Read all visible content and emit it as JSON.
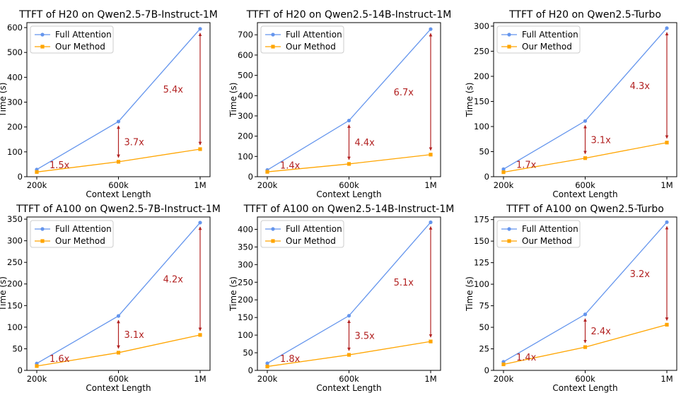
{
  "colors": {
    "full_attention": "#6495ED",
    "our_method": "#FFA500",
    "speedup_arrow": "#B22222",
    "axes": "#000000"
  },
  "chart_data": [
    {
      "type": "line",
      "title": "TTFT of H20 on Qwen2.5-7B-Instruct-1M",
      "xlabel": "Context Length",
      "ylabel": "Time (s)",
      "categories": [
        "200k",
        "600k",
        "1M"
      ],
      "ylim": [
        0,
        620
      ],
      "yticks": [
        0,
        100,
        200,
        300,
        400,
        500,
        600
      ],
      "legend": "upper-left",
      "series": [
        {
          "name": "Full Attention",
          "values": [
            29,
            222,
            595
          ]
        },
        {
          "name": "Our Method",
          "values": [
            19,
            60,
            111
          ]
        }
      ],
      "speedups": [
        {
          "category_index": 0,
          "label": "1.5x",
          "arrow": false
        },
        {
          "category_index": 1,
          "label": "3.7x",
          "arrow": true
        },
        {
          "category_index": 2,
          "label": "5.4x",
          "arrow": true
        }
      ]
    },
    {
      "type": "line",
      "title": "TTFT of H20 on Qwen2.5-14B-Instruct-1M",
      "xlabel": "Context Length",
      "ylabel": "Time (s)",
      "categories": [
        "200k",
        "600k",
        "1M"
      ],
      "ylim": [
        0,
        760
      ],
      "yticks": [
        0,
        100,
        200,
        300,
        400,
        500,
        600,
        700
      ],
      "legend": "upper-left",
      "series": [
        {
          "name": "Full Attention",
          "values": [
            33,
            277,
            728
          ]
        },
        {
          "name": "Our Method",
          "values": [
            24,
            63,
            109
          ]
        }
      ],
      "speedups": [
        {
          "category_index": 0,
          "label": "1.4x",
          "arrow": false
        },
        {
          "category_index": 1,
          "label": "4.4x",
          "arrow": true
        },
        {
          "category_index": 2,
          "label": "6.7x",
          "arrow": true
        }
      ]
    },
    {
      "type": "line",
      "title": "TTFT of H20 on Qwen2.5-Turbo",
      "xlabel": "Context Length",
      "ylabel": "Time (s)",
      "categories": [
        "200k",
        "600k",
        "1M"
      ],
      "ylim": [
        0,
        307
      ],
      "yticks": [
        0,
        50,
        100,
        150,
        200,
        250,
        300
      ],
      "legend": "upper-left",
      "series": [
        {
          "name": "Full Attention",
          "values": [
            15,
            111,
            296
          ]
        },
        {
          "name": "Our Method",
          "values": [
            9,
            37,
            68
          ]
        }
      ],
      "speedups": [
        {
          "category_index": 0,
          "label": "1.7x",
          "arrow": false
        },
        {
          "category_index": 1,
          "label": "3.1x",
          "arrow": true
        },
        {
          "category_index": 2,
          "label": "4.3x",
          "arrow": true
        }
      ]
    },
    {
      "type": "line",
      "title": "TTFT of A100 on Qwen2.5-7B-Instruct-1M",
      "xlabel": "Context Length",
      "ylabel": "Time (s)",
      "categories": [
        "200k",
        "600k",
        "1M"
      ],
      "ylim": [
        0,
        355
      ],
      "yticks": [
        0,
        50,
        100,
        150,
        200,
        250,
        300,
        350
      ],
      "legend": "upper-left",
      "series": [
        {
          "name": "Full Attention",
          "values": [
            16,
            126,
            342
          ]
        },
        {
          "name": "Our Method",
          "values": [
            10,
            41,
            82
          ]
        }
      ],
      "speedups": [
        {
          "category_index": 0,
          "label": "1.6x",
          "arrow": false
        },
        {
          "category_index": 1,
          "label": "3.1x",
          "arrow": true
        },
        {
          "category_index": 2,
          "label": "4.2x",
          "arrow": true
        }
      ]
    },
    {
      "type": "line",
      "title": "TTFT of A100 on Qwen2.5-14B-Instruct-1M",
      "xlabel": "Context Length",
      "ylabel": "Time (s)",
      "categories": [
        "200k",
        "600k",
        "1M"
      ],
      "ylim": [
        0,
        435
      ],
      "yticks": [
        0,
        50,
        100,
        150,
        200,
        250,
        300,
        350,
        400
      ],
      "legend": "upper-left",
      "series": [
        {
          "name": "Full Attention",
          "values": [
            20,
            155,
            420
          ]
        },
        {
          "name": "Our Method",
          "values": [
            11,
            44,
            82
          ]
        }
      ],
      "speedups": [
        {
          "category_index": 0,
          "label": "1.8x",
          "arrow": false
        },
        {
          "category_index": 1,
          "label": "3.5x",
          "arrow": true
        },
        {
          "category_index": 2,
          "label": "5.1x",
          "arrow": true
        }
      ]
    },
    {
      "type": "line",
      "title": "TTFT of A100 on Qwen2.5-Turbo",
      "xlabel": "Context Length",
      "ylabel": "Time (s)",
      "categories": [
        "200k",
        "600k",
        "1M"
      ],
      "ylim": [
        0,
        178
      ],
      "yticks": [
        0,
        25,
        50,
        75,
        100,
        125,
        150,
        175
      ],
      "legend": "upper-left",
      "series": [
        {
          "name": "Full Attention",
          "values": [
            10,
            65,
            172
          ]
        },
        {
          "name": "Our Method",
          "values": [
            7,
            27,
            53
          ]
        }
      ],
      "speedups": [
        {
          "category_index": 0,
          "label": "1.4x",
          "arrow": false
        },
        {
          "category_index": 1,
          "label": "2.4x",
          "arrow": true
        },
        {
          "category_index": 2,
          "label": "3.2x",
          "arrow": true
        }
      ]
    }
  ]
}
